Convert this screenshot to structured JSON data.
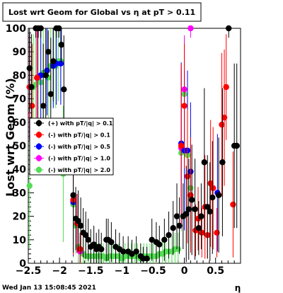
{
  "title": "Lost wrt Geom for Global vs   η at pT > 0.11",
  "footer_timestamp": "Wed Jan 13 15:08:45 2021",
  "chart_data": {
    "type": "scatter",
    "title": "Lost wrt Geom for Global vs   η at pT > 0.11",
    "xlabel": "η",
    "ylabel": "Lost wrt Geom (%)",
    "xlim": [
      -2.5,
      0.9
    ],
    "ylim": [
      0,
      100
    ],
    "x_ticks": [
      -2.5,
      -2,
      -1.5,
      -1,
      -0.5,
      0,
      0.5
    ],
    "x_tick_labels": [
      "−2.5",
      "−2",
      "−1.5",
      "−1",
      "−0.5",
      "0",
      "0.5"
    ],
    "y_ticks": [
      0,
      10,
      20,
      30,
      40,
      50,
      60,
      70,
      80,
      90,
      100
    ],
    "y_tick_labels": [
      "0",
      "10",
      "20",
      "30",
      "40",
      "50",
      "60",
      "70",
      "80",
      "90",
      "100"
    ],
    "grid": false,
    "legend_position": "left-middle",
    "series": [
      {
        "name": "(+) with pT/|q| > 0.1",
        "color": "#000000",
        "points": [
          [
            -2.48,
            83
          ],
          [
            -2.45,
            75
          ],
          [
            -2.38,
            100
          ],
          [
            -2.34,
            100
          ],
          [
            -2.3,
            100
          ],
          [
            -2.26,
            67
          ],
          [
            -2.22,
            80
          ],
          [
            -2.18,
            90
          ],
          [
            -2.14,
            72
          ],
          [
            -2.1,
            86
          ],
          [
            -2.05,
            100
          ],
          [
            -2.01,
            100
          ],
          [
            -1.97,
            93
          ],
          [
            -1.93,
            74
          ],
          [
            -1.78,
            29
          ],
          [
            -1.74,
            19
          ],
          [
            -1.7,
            18
          ],
          [
            -1.66,
            16
          ],
          [
            -1.62,
            13
          ],
          [
            -1.58,
            12
          ],
          [
            -1.54,
            10
          ],
          [
            -1.5,
            7
          ],
          [
            -1.45,
            8
          ],
          [
            -1.41,
            6
          ],
          [
            -1.37,
            7
          ],
          [
            -1.33,
            6
          ],
          [
            -1.25,
            10
          ],
          [
            -1.22,
            10
          ],
          [
            -1.17,
            9
          ],
          [
            -1.1,
            7
          ],
          [
            -1.04,
            6
          ],
          [
            -0.98,
            5
          ],
          [
            -0.9,
            5
          ],
          [
            -0.84,
            4
          ],
          [
            -0.77,
            5
          ],
          [
            -0.7,
            3
          ],
          [
            -0.66,
            2
          ],
          [
            -0.6,
            2
          ],
          [
            -0.52,
            10
          ],
          [
            -0.45,
            9
          ],
          [
            -0.4,
            8
          ],
          [
            -0.32,
            10
          ],
          [
            -0.25,
            12
          ],
          [
            -0.18,
            15
          ],
          [
            -0.12,
            20
          ],
          [
            -0.08,
            16
          ],
          [
            -0.02,
            20
          ],
          [
            0.03,
            21
          ],
          [
            0.07,
            23
          ],
          [
            0.12,
            27
          ],
          [
            0.17,
            23
          ],
          [
            0.23,
            15
          ],
          [
            0.27,
            20
          ],
          [
            0.32,
            43
          ],
          [
            0.37,
            24
          ],
          [
            0.41,
            22
          ],
          [
            0.45,
            28
          ],
          [
            0.55,
            29
          ],
          [
            0.61,
            43
          ],
          [
            0.71,
            100
          ],
          [
            0.8,
            50
          ],
          [
            0.84,
            50
          ]
        ]
      },
      {
        "name": "(-) with pT/|q| > 0.1",
        "color": "#ff0000",
        "points": [
          [
            -2.48,
            75
          ],
          [
            -2.44,
            67
          ],
          [
            -2.36,
            79
          ],
          [
            -1.78,
            27
          ],
          [
            -1.72,
            17
          ],
          [
            -1.67,
            6
          ],
          [
            -0.05,
            50
          ],
          [
            0.0,
            67
          ],
          [
            0.05,
            37
          ],
          [
            0.1,
            29
          ],
          [
            0.18,
            14
          ],
          [
            0.22,
            19
          ],
          [
            0.28,
            13
          ],
          [
            0.33,
            24
          ],
          [
            0.37,
            12
          ],
          [
            0.42,
            34
          ],
          [
            0.46,
            32
          ],
          [
            0.52,
            13
          ],
          [
            0.6,
            59
          ],
          [
            0.64,
            62
          ],
          [
            0.67,
            75
          ],
          [
            0.78,
            25
          ]
        ]
      },
      {
        "name": "(-) with pT/|q| > 0.5",
        "color": "#0000ff",
        "points": [
          [
            -2.48,
            75
          ],
          [
            -2.36,
            79
          ],
          [
            -2.3,
            80
          ],
          [
            -2.2,
            82
          ],
          [
            -2.1,
            84
          ],
          [
            -2.05,
            85
          ],
          [
            -1.98,
            85
          ],
          [
            -1.78,
            26
          ],
          [
            -1.72,
            17
          ],
          [
            -1.67,
            6
          ],
          [
            -0.05,
            51
          ],
          [
            0.0,
            48
          ],
          [
            0.05,
            48
          ],
          [
            0.1,
            39
          ],
          [
            0.53,
            30
          ]
        ]
      },
      {
        "name": "(-) with pT/|q| > 1.0",
        "color": "#ff00ff",
        "points": [
          [
            -2.48,
            75
          ],
          [
            -2.35,
            79
          ],
          [
            -1.78,
            27
          ],
          [
            -1.67,
            5
          ],
          [
            -0.05,
            49
          ],
          [
            0.0,
            74
          ],
          [
            0.1,
            100
          ]
        ]
      },
      {
        "name": "(-) with pT/|q| > 2.0",
        "color": "#55dd55",
        "points": [
          [
            -2.48,
            33
          ],
          [
            -2.42,
            75
          ],
          [
            -2.38,
            76
          ],
          [
            -2.34,
            78
          ],
          [
            -2.3,
            77
          ],
          [
            -2.26,
            81
          ],
          [
            -2.22,
            80
          ],
          [
            -2.18,
            79
          ],
          [
            -2.14,
            84
          ],
          [
            -2.1,
            85
          ],
          [
            -2.06,
            84
          ],
          [
            -2.02,
            86
          ],
          [
            -1.98,
            86
          ],
          [
            -1.94,
            38
          ],
          [
            -1.78,
            25
          ],
          [
            -1.74,
            16
          ],
          [
            -1.7,
            7
          ],
          [
            -1.66,
            5
          ],
          [
            -1.62,
            4
          ],
          [
            -1.58,
            3
          ],
          [
            -1.54,
            3
          ],
          [
            -1.5,
            3
          ],
          [
            -1.45,
            3
          ],
          [
            -1.4,
            3
          ],
          [
            -1.35,
            3
          ],
          [
            -1.3,
            3
          ],
          [
            -1.25,
            2
          ],
          [
            -1.2,
            3
          ],
          [
            -1.15,
            3
          ],
          [
            -1.1,
            3
          ],
          [
            -1.05,
            3
          ],
          [
            -1.0,
            2
          ],
          [
            -0.95,
            3
          ],
          [
            -0.9,
            3
          ],
          [
            -0.85,
            3
          ],
          [
            -0.8,
            3
          ],
          [
            -0.75,
            3
          ],
          [
            -0.7,
            2
          ],
          [
            -0.65,
            3
          ],
          [
            -0.6,
            3
          ],
          [
            -0.55,
            3
          ],
          [
            -0.5,
            3
          ],
          [
            -0.45,
            3
          ],
          [
            -0.4,
            4
          ],
          [
            -0.35,
            4
          ],
          [
            -0.3,
            5
          ],
          [
            -0.25,
            5
          ],
          [
            -0.2,
            5
          ],
          [
            -0.15,
            6
          ],
          [
            -0.1,
            6
          ],
          [
            -0.05,
            47
          ],
          [
            0.0,
            72
          ],
          [
            0.05,
            46
          ],
          [
            0.1,
            32
          ]
        ]
      }
    ]
  }
}
